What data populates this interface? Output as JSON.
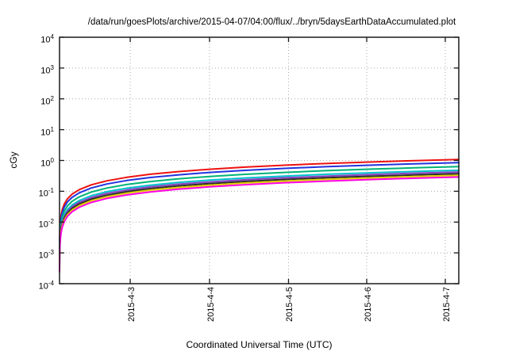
{
  "colors": {
    "background": "#ffffff",
    "frame": "#1a1a1a",
    "grid": "#a9a9a9",
    "text": "#000000"
  },
  "chart_data": {
    "type": "line",
    "title": "/data/run/goesPlots/archive/2015-04-07/04:00/flux/../bryn/5daysEarthDataAccumulated.plot",
    "xlabel": "Coordinated Universal Time (UTC)",
    "ylabel": "cGy",
    "y_scale": "log10",
    "ylim_exp": [
      -4,
      4
    ],
    "y_tick_exponents": [
      4,
      3,
      2,
      1,
      0,
      -1,
      -2,
      -3,
      -4
    ],
    "grid": "dotted, horizontal at each decade and vertical at each date tick",
    "legend": "none",
    "x_range_days": [
      0,
      5.06
    ],
    "x_ticks": [
      {
        "day": 0.896,
        "label": "2015-4-3"
      },
      {
        "day": 1.901,
        "label": "2015-4-4"
      },
      {
        "day": 2.902,
        "label": "2015-4-5"
      },
      {
        "day": 3.893,
        "label": "2015-4-6"
      },
      {
        "day": 4.889,
        "label": "2015-4-7"
      }
    ],
    "x_days": [
      0.0004,
      0.001,
      0.002,
      0.004,
      0.007,
      0.012,
      0.02,
      0.035,
      0.06,
      0.1,
      0.16,
      0.25,
      0.4,
      0.6,
      0.85,
      1.15,
      1.5,
      1.9,
      2.35,
      2.85,
      3.4,
      4.0,
      4.5,
      5.06
    ],
    "series": [
      {
        "name": "series-red",
        "color": "#ee1111",
        "final_cgy": 1.08,
        "values": [
          0.000906,
          0.00179,
          0.00302,
          0.0051,
          0.00774,
          0.0116,
          0.017,
          0.0259,
          0.0388,
          0.0569,
          0.081,
          0.113,
          0.161,
          0.218,
          0.283,
          0.356,
          0.434,
          0.518,
          0.608,
          0.702,
          0.802,
          0.906,
          0.989,
          1.08
        ]
      },
      {
        "name": "series-blue",
        "color": "#2233dd",
        "final_cgy": 0.85,
        "values": [
          0.000713,
          0.00141,
          0.00238,
          0.00401,
          0.00609,
          0.00913,
          0.0134,
          0.0204,
          0.0305,
          0.0448,
          0.0638,
          0.0891,
          0.127,
          0.172,
          0.223,
          0.28,
          0.341,
          0.408,
          0.478,
          0.553,
          0.631,
          0.713,
          0.778,
          0.85
        ]
      },
      {
        "name": "series-seagreen",
        "color": "#00b377",
        "final_cgy": 0.63,
        "values": [
          0.000529,
          0.00105,
          0.00176,
          0.00297,
          0.00452,
          0.00677,
          0.00994,
          0.0151,
          0.0226,
          0.0332,
          0.0473,
          0.066,
          0.0939,
          0.127,
          0.165,
          0.207,
          0.253,
          0.302,
          0.354,
          0.41,
          0.468,
          0.528,
          0.577,
          0.63
        ]
      },
      {
        "name": "series-cyan",
        "color": "#00c0cc",
        "final_cgy": 0.48,
        "values": [
          0.000403,
          0.0008,
          0.00134,
          0.00227,
          0.00344,
          0.00516,
          0.00757,
          0.0115,
          0.0172,
          0.0253,
          0.036,
          0.0503,
          0.0716,
          0.097,
          0.126,
          0.158,
          0.193,
          0.23,
          0.27,
          0.312,
          0.356,
          0.402,
          0.44,
          0.48
        ]
      },
      {
        "name": "series-purple",
        "color": "#8840c0",
        "final_cgy": 0.42,
        "values": [
          0.000352,
          0.000697,
          0.00118,
          0.00198,
          0.00301,
          0.00451,
          0.00663,
          0.0101,
          0.0151,
          0.0221,
          0.0315,
          0.044,
          0.0626,
          0.0849,
          0.11,
          0.138,
          0.169,
          0.201,
          0.236,
          0.273,
          0.312,
          0.352,
          0.385,
          0.42
        ]
      },
      {
        "name": "series-black",
        "color": "#2a2a2a",
        "final_cgy": 0.37,
        "values": [
          0.00031,
          0.000614,
          0.00104,
          0.00175,
          0.00265,
          0.00397,
          0.00584,
          0.00888,
          0.0133,
          0.0195,
          0.0278,
          0.0388,
          0.0552,
          0.0748,
          0.0971,
          0.122,
          0.149,
          0.177,
          0.208,
          0.241,
          0.275,
          0.31,
          0.339,
          0.37
        ]
      },
      {
        "name": "series-yellow",
        "color": "#e0cc00",
        "final_cgy": 0.33,
        "values": [
          0.000277,
          0.000548,
          0.000924,
          0.00156,
          0.00237,
          0.00354,
          0.00521,
          0.00792,
          0.0118,
          0.0174,
          0.0248,
          0.0346,
          0.0492,
          0.0667,
          0.0866,
          0.109,
          0.133,
          0.158,
          0.186,
          0.215,
          0.245,
          0.277,
          0.302,
          0.33
        ]
      },
      {
        "name": "series-magenta",
        "color": "#ff00e0",
        "final_cgy": 0.29,
        "values": [
          0.000243,
          0.000481,
          0.000812,
          0.00137,
          0.00208,
          0.00311,
          0.00458,
          0.00696,
          0.0104,
          0.0153,
          0.0218,
          0.0304,
          0.0432,
          0.0586,
          0.0761,
          0.0955,
          0.117,
          0.139,
          0.163,
          0.189,
          0.215,
          0.243,
          0.266,
          0.29
        ]
      }
    ]
  }
}
